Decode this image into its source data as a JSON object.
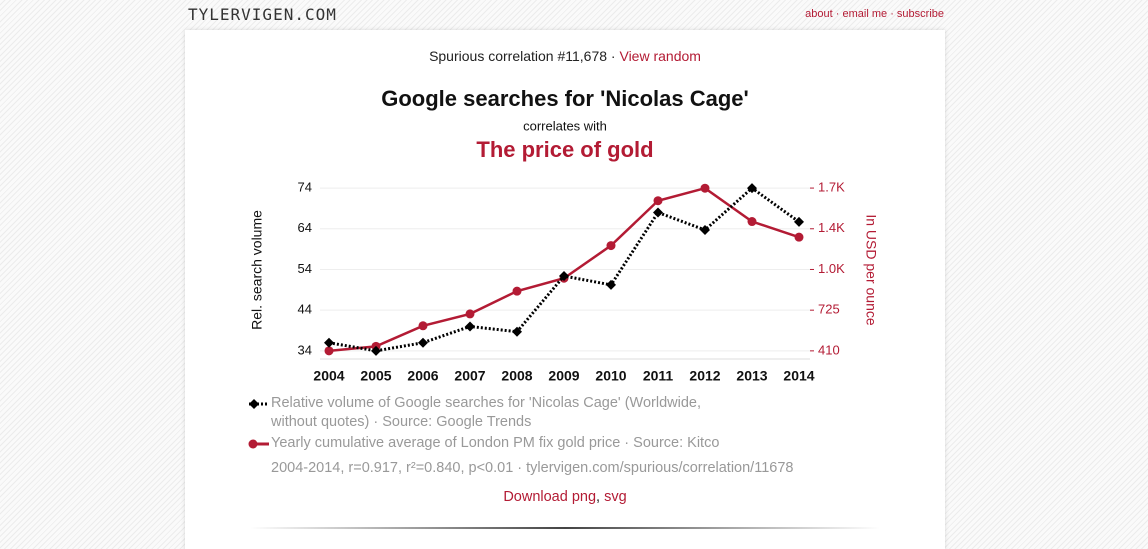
{
  "header": {
    "logo": "TYLERVIGEN.COM",
    "nav": [
      "about",
      "email me",
      "subscribe"
    ]
  },
  "separator": "·",
  "intro": {
    "text": "Spurious correlation #11,678",
    "link": "View random"
  },
  "chart_data": {
    "type": "line",
    "title": "Google searches for 'Nicolas Cage'",
    "subtitle": "correlates with",
    "title2": "The price of gold",
    "categories": [
      "2004",
      "2005",
      "2006",
      "2007",
      "2008",
      "2009",
      "2010",
      "2011",
      "2012",
      "2013",
      "2014"
    ],
    "series": [
      {
        "name": "Relative volume of Google searches for 'Nicolas Cage' (Worldwide, without quotes) · Source: Google Trends",
        "color": "#000000",
        "marker": "diamond",
        "dashed": true,
        "values": [
          36,
          34,
          36,
          40,
          38.7,
          52.4,
          50.2,
          68,
          63.7,
          74,
          65.7
        ]
      },
      {
        "name": "Yearly cumulative average of London PM fix gold price · Source: Kitco",
        "color": "#b31b34",
        "marker": "circle",
        "dashed": false,
        "axis": "y2",
        "values": [
          410,
          445,
          604,
          696,
          872,
          972,
          1225,
          1572,
          1669,
          1411,
          1290
        ]
      }
    ],
    "ylabel": "Rel. search volume",
    "y2label": "In USD per ounce",
    "ylim": [
      32,
      75
    ],
    "yticks": [
      34,
      44,
      54,
      64,
      74
    ],
    "y2lim": [
      347,
      1701.5
    ],
    "y2ticks": [
      410,
      725,
      {
        "value": 1040,
        "label": "1.0K"
      },
      {
        "value": 1355,
        "label": "1.4K"
      },
      {
        "value": 1670,
        "label": "1.7K"
      }
    ],
    "grid": true,
    "legend": "bottom"
  },
  "footer": {
    "stats": "2004-2014, r=0.917, r²=0.840, p<0.01 · tylervigen.com/spurious/correlation/11678",
    "downloads": [
      "Download png",
      "svg"
    ],
    "download_separator": ","
  }
}
